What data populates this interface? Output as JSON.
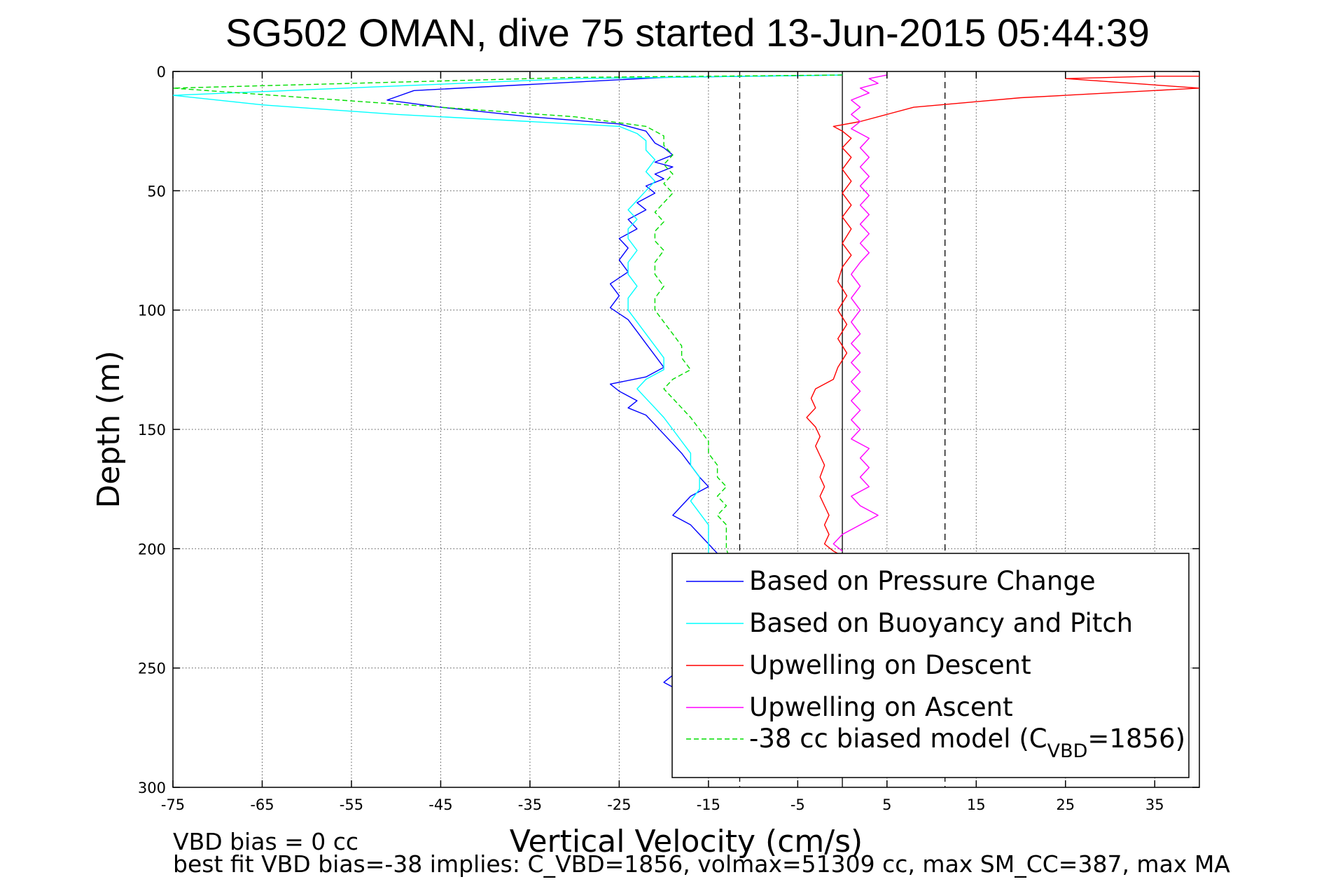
{
  "chart_data": {
    "type": "line",
    "title": "SG502 OMAN, dive 75 started 13-Jun-2015 05:44:39",
    "xlabel": "Vertical Velocity (cm/s)",
    "ylabel": "Depth (m)",
    "xlim": [
      -75,
      40
    ],
    "ylim": [
      0,
      300
    ],
    "y_reversed": true,
    "grid": true,
    "legend_position": "bottom-right",
    "xticks": [
      "-75",
      "-65",
      "-55",
      "-45",
      "-35",
      "-25",
      "-15",
      "-5",
      "5",
      "15",
      "25",
      "35"
    ],
    "xtick_values": [
      -75,
      -65,
      -55,
      -45,
      -35,
      -25,
      -15,
      -5,
      5,
      15,
      25,
      35
    ],
    "yticks": [
      "0",
      "50",
      "100",
      "150",
      "200",
      "250",
      "300"
    ],
    "ytick_values": [
      0,
      50,
      100,
      150,
      200,
      250,
      300
    ],
    "vertical_lines": [
      {
        "x": 0,
        "style": "solid",
        "color": "#000000"
      },
      {
        "x": -11.5,
        "style": "dashed",
        "color": "#000000"
      },
      {
        "x": 11.5,
        "style": "dashed",
        "color": "#000000"
      }
    ],
    "series": [
      {
        "name": "Based on Pressure Change",
        "color": "#0000ff",
        "dash": "solid",
        "points": [
          [
            0,
            1.5
          ],
          [
            -20,
            2.5
          ],
          [
            -48,
            8
          ],
          [
            -51,
            12
          ],
          [
            -45,
            15
          ],
          [
            -35,
            19
          ],
          [
            -25,
            22
          ],
          [
            -22,
            25
          ],
          [
            -21,
            30
          ],
          [
            -20,
            32
          ],
          [
            -19,
            35
          ],
          [
            -21,
            38
          ],
          [
            -19,
            40
          ],
          [
            -21,
            43
          ],
          [
            -20,
            45
          ],
          [
            -22,
            48
          ],
          [
            -21,
            51
          ],
          [
            -23,
            55
          ],
          [
            -22,
            58
          ],
          [
            -24,
            62
          ],
          [
            -23,
            66
          ],
          [
            -25,
            70
          ],
          [
            -24,
            74
          ],
          [
            -25,
            79
          ],
          [
            -24,
            84
          ],
          [
            -26,
            89
          ],
          [
            -25,
            94
          ],
          [
            -26,
            99
          ],
          [
            -24,
            104
          ],
          [
            -23,
            109
          ],
          [
            -22,
            114
          ],
          [
            -21,
            119
          ],
          [
            -20,
            124
          ],
          [
            -22,
            128
          ],
          [
            -26,
            131
          ],
          [
            -25,
            134
          ],
          [
            -23,
            138
          ],
          [
            -24,
            141
          ],
          [
            -22,
            144
          ],
          [
            -21,
            148
          ],
          [
            -20,
            152
          ],
          [
            -19,
            156
          ],
          [
            -18,
            160
          ],
          [
            -17,
            165
          ],
          [
            -16,
            170
          ],
          [
            -15,
            174
          ],
          [
            -17,
            178
          ],
          [
            -18,
            182
          ],
          [
            -19,
            186
          ],
          [
            -17,
            190
          ],
          [
            -16,
            194
          ],
          [
            -15,
            198
          ],
          [
            -14,
            202
          ],
          [
            -13,
            206
          ],
          [
            -13,
            220
          ],
          [
            -13,
            240
          ],
          [
            -17,
            250
          ],
          [
            -19,
            253
          ],
          [
            -20,
            256
          ],
          [
            -19,
            258
          ]
        ]
      },
      {
        "name": "Based on Buoyancy and Pitch",
        "color": "#00ffff",
        "dash": "solid",
        "points": [
          [
            0,
            1.5
          ],
          [
            -30,
            3
          ],
          [
            -75,
            10
          ],
          [
            -65,
            14
          ],
          [
            -50,
            18
          ],
          [
            -35,
            21
          ],
          [
            -25,
            23
          ],
          [
            -23,
            26
          ],
          [
            -22,
            29
          ],
          [
            -22,
            33
          ],
          [
            -21,
            37
          ],
          [
            -22,
            42
          ],
          [
            -21,
            46
          ],
          [
            -22,
            50
          ],
          [
            -23,
            54
          ],
          [
            -24,
            58
          ],
          [
            -23,
            62
          ],
          [
            -24,
            66
          ],
          [
            -24,
            70
          ],
          [
            -23,
            75
          ],
          [
            -24,
            80
          ],
          [
            -24,
            85
          ],
          [
            -23,
            90
          ],
          [
            -24,
            95
          ],
          [
            -24,
            100
          ],
          [
            -23,
            105
          ],
          [
            -22,
            110
          ],
          [
            -21,
            115
          ],
          [
            -20,
            120
          ],
          [
            -20,
            125
          ],
          [
            -22,
            129
          ],
          [
            -23,
            133
          ],
          [
            -22,
            137
          ],
          [
            -21,
            141
          ],
          [
            -20,
            145
          ],
          [
            -19,
            150
          ],
          [
            -18,
            155
          ],
          [
            -17,
            160
          ],
          [
            -17,
            165
          ],
          [
            -16,
            170
          ],
          [
            -16,
            175
          ],
          [
            -17,
            180
          ],
          [
            -16,
            185
          ],
          [
            -15,
            190
          ],
          [
            -15,
            195
          ],
          [
            -15,
            200
          ],
          [
            -15,
            205
          ],
          [
            -14,
            210
          ],
          [
            -14,
            225
          ],
          [
            -14,
            245
          ],
          [
            -14,
            258
          ]
        ]
      },
      {
        "name": "Upwelling on Descent",
        "color": "#ff0000",
        "dash": "solid",
        "points": [
          [
            40,
            2
          ],
          [
            35,
            2
          ],
          [
            25,
            3
          ],
          [
            40,
            7
          ],
          [
            20,
            11
          ],
          [
            14,
            13
          ],
          [
            8,
            15
          ],
          [
            5,
            18
          ],
          [
            2,
            21
          ],
          [
            -1,
            23
          ],
          [
            0,
            25
          ],
          [
            1,
            28
          ],
          [
            0,
            32
          ],
          [
            1,
            36
          ],
          [
            0,
            41
          ],
          [
            1,
            46
          ],
          [
            0,
            51
          ],
          [
            1,
            56
          ],
          [
            0,
            61
          ],
          [
            1,
            66
          ],
          [
            0,
            72
          ],
          [
            1,
            77
          ],
          [
            0,
            82
          ],
          [
            -0.5,
            88
          ],
          [
            0.5,
            94
          ],
          [
            -0.5,
            100
          ],
          [
            0.5,
            106
          ],
          [
            -0.5,
            112
          ],
          [
            0.5,
            118
          ],
          [
            -0.5,
            124
          ],
          [
            -1,
            129
          ],
          [
            -3,
            133
          ],
          [
            -3.5,
            137
          ],
          [
            -3,
            141
          ],
          [
            -4,
            145
          ],
          [
            -3,
            149
          ],
          [
            -2.5,
            153
          ],
          [
            -3,
            157
          ],
          [
            -2.5,
            161
          ],
          [
            -2,
            165
          ],
          [
            -2.5,
            170
          ],
          [
            -2,
            174
          ],
          [
            -2.5,
            178
          ],
          [
            -2,
            182
          ],
          [
            -1.5,
            186
          ],
          [
            -2,
            190
          ],
          [
            -1.5,
            194
          ],
          [
            -2,
            198
          ],
          [
            -1,
            201
          ],
          [
            0,
            203
          ]
        ]
      },
      {
        "name": "Upwelling on Ascent",
        "color": "#ff00ff",
        "dash": "solid",
        "points": [
          [
            5,
            1.5
          ],
          [
            3,
            3
          ],
          [
            4,
            5
          ],
          [
            2,
            7
          ],
          [
            3,
            9
          ],
          [
            1,
            12
          ],
          [
            2,
            15
          ],
          [
            1,
            18
          ],
          [
            2,
            21
          ],
          [
            1,
            24
          ],
          [
            3,
            28
          ],
          [
            2,
            32
          ],
          [
            3,
            36
          ],
          [
            2,
            40
          ],
          [
            3,
            44
          ],
          [
            2,
            48
          ],
          [
            3,
            52
          ],
          [
            2,
            56
          ],
          [
            3,
            60
          ],
          [
            2,
            64
          ],
          [
            3,
            68
          ],
          [
            2,
            72
          ],
          [
            3,
            76
          ],
          [
            2,
            80
          ],
          [
            1,
            85
          ],
          [
            2,
            90
          ],
          [
            1,
            95
          ],
          [
            2,
            100
          ],
          [
            1,
            105
          ],
          [
            2,
            110
          ],
          [
            1,
            114
          ],
          [
            2,
            118
          ],
          [
            1,
            122
          ],
          [
            2,
            126
          ],
          [
            1,
            130
          ],
          [
            2,
            134
          ],
          [
            1,
            138
          ],
          [
            2,
            142
          ],
          [
            1,
            146
          ],
          [
            2,
            150
          ],
          [
            1,
            154
          ],
          [
            3,
            158
          ],
          [
            2,
            162
          ],
          [
            3,
            166
          ],
          [
            2,
            170
          ],
          [
            3,
            174
          ],
          [
            1,
            178
          ],
          [
            2,
            182
          ],
          [
            4,
            186
          ],
          [
            2,
            190
          ],
          [
            0,
            194
          ],
          [
            -1,
            198
          ],
          [
            0,
            201
          ]
        ]
      },
      {
        "name": "-38 cc biased model (C",
        "color": "#00dd00",
        "dash": "dashed",
        "points": [
          [
            0,
            1.5
          ],
          [
            -30,
            2.5
          ],
          [
            -75,
            7
          ],
          [
            -60,
            11
          ],
          [
            -45,
            15
          ],
          [
            -30,
            19
          ],
          [
            -22,
            23
          ],
          [
            -20,
            27
          ],
          [
            -20,
            31
          ],
          [
            -19,
            35
          ],
          [
            -20,
            39
          ],
          [
            -19,
            43
          ],
          [
            -20,
            47
          ],
          [
            -19,
            51
          ],
          [
            -20,
            55
          ],
          [
            -21,
            59
          ],
          [
            -20,
            63
          ],
          [
            -21,
            67
          ],
          [
            -21,
            71
          ],
          [
            -20,
            75
          ],
          [
            -21,
            80
          ],
          [
            -21,
            85
          ],
          [
            -20,
            90
          ],
          [
            -21,
            95
          ],
          [
            -21,
            100
          ],
          [
            -20,
            105
          ],
          [
            -19,
            110
          ],
          [
            -18,
            115
          ],
          [
            -18,
            120
          ],
          [
            -17,
            125
          ],
          [
            -19,
            129
          ],
          [
            -20,
            133
          ],
          [
            -19,
            137
          ],
          [
            -18,
            141
          ],
          [
            -17,
            145
          ],
          [
            -16,
            150
          ],
          [
            -15,
            155
          ],
          [
            -15,
            160
          ],
          [
            -14,
            165
          ],
          [
            -14,
            170
          ],
          [
            -13,
            174
          ],
          [
            -14,
            178
          ],
          [
            -13,
            182
          ],
          [
            -14,
            186
          ],
          [
            -13,
            190
          ],
          [
            -13,
            195
          ],
          [
            -13,
            200
          ],
          [
            -12.5,
            206
          ],
          [
            -12.5,
            220
          ]
        ]
      }
    ],
    "annotations": [
      "VBD bias = 0 cc",
      "best fit VBD bias=-38 implies: C_VBD=1856, volmax=51309 cc, max SM_CC=387, max MA"
    ]
  },
  "legend": {
    "entries": [
      {
        "label": "Based on Pressure Change",
        "color": "#0000ff",
        "dash": "solid"
      },
      {
        "label": "Based on Buoyancy and Pitch",
        "color": "#00ffff",
        "dash": "solid"
      },
      {
        "label": "Upwelling on Descent",
        "color": "#ff0000",
        "dash": "solid"
      },
      {
        "label": "Upwelling on Ascent",
        "color": "#ff00ff",
        "dash": "solid"
      },
      {
        "label": "-38 cc biased model (C",
        "color": "#00dd00",
        "dash": "dashed"
      }
    ],
    "model_subscript": "VBD",
    "model_suffix": "=1856)"
  },
  "footnotes": {
    "line1": "VBD bias = 0 cc",
    "line2": "best fit VBD bias=-38 implies: C_VBD=1856, volmax=51309 cc, max SM_CC=387, max MA"
  }
}
